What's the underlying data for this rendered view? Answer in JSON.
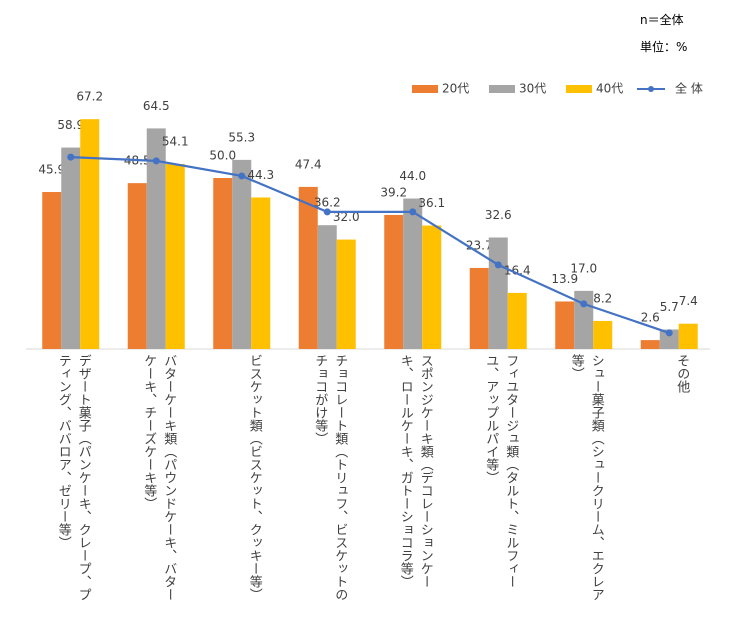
{
  "chart_data": {
    "type": "bar",
    "notes": [
      "n＝全体",
      "単位：%"
    ],
    "categories": [
      "デザート菓子（パンケーキ、クレープ、プティング、ババロア、ゼリー等）",
      "バターケーキ類（パウンドケーキ、バターケーキ、チーズケーキ等）",
      "ビスケット類（ビスケット、クッキー等）",
      "チョコレート類（トリュフ、ビスケットのチョコがけ等）",
      "スポンジケーキ類（デコレーションケーキ、ロールケーキ、ガトーショコラ等）",
      "フィユタージュ類（タルト、ミルフィーユ、アップルパイ等）",
      "シュー菓子類（シュークリーム、エクレア等）",
      "その他"
    ],
    "series": [
      {
        "name": "20代",
        "color": "#ED7D31",
        "values": [
          45.9,
          48.5,
          50.0,
          47.4,
          39.2,
          23.7,
          13.9,
          2.6
        ],
        "value_labels": [
          "45.9",
          "48.5",
          "50.0",
          "47.4",
          "39.2",
          "23.7",
          "13.9",
          "2.6"
        ]
      },
      {
        "name": "30代",
        "color": "#A5A5A5",
        "values": [
          58.9,
          64.5,
          55.3,
          36.2,
          44.0,
          32.6,
          17.0,
          5.7
        ],
        "value_labels": [
          "58.9",
          "64.5",
          "55.3",
          "36.2",
          "44.0",
          "32.6",
          "17.0",
          "5.7"
        ]
      },
      {
        "name": "40代",
        "color": "#FFC000",
        "values": [
          67.2,
          54.1,
          44.3,
          32.0,
          36.1,
          16.4,
          8.2,
          7.4
        ],
        "value_labels": [
          "67.2",
          "54.1",
          "44.3",
          "32.0",
          "36.1",
          "16.4",
          "8.2",
          "7.4"
        ]
      },
      {
        "name": "全 体",
        "color": "#4472C4",
        "type": "line",
        "values": [
          56.1,
          55.0,
          50.6,
          40.1,
          40.1,
          24.6,
          13.2,
          4.7
        ]
      }
    ]
  }
}
